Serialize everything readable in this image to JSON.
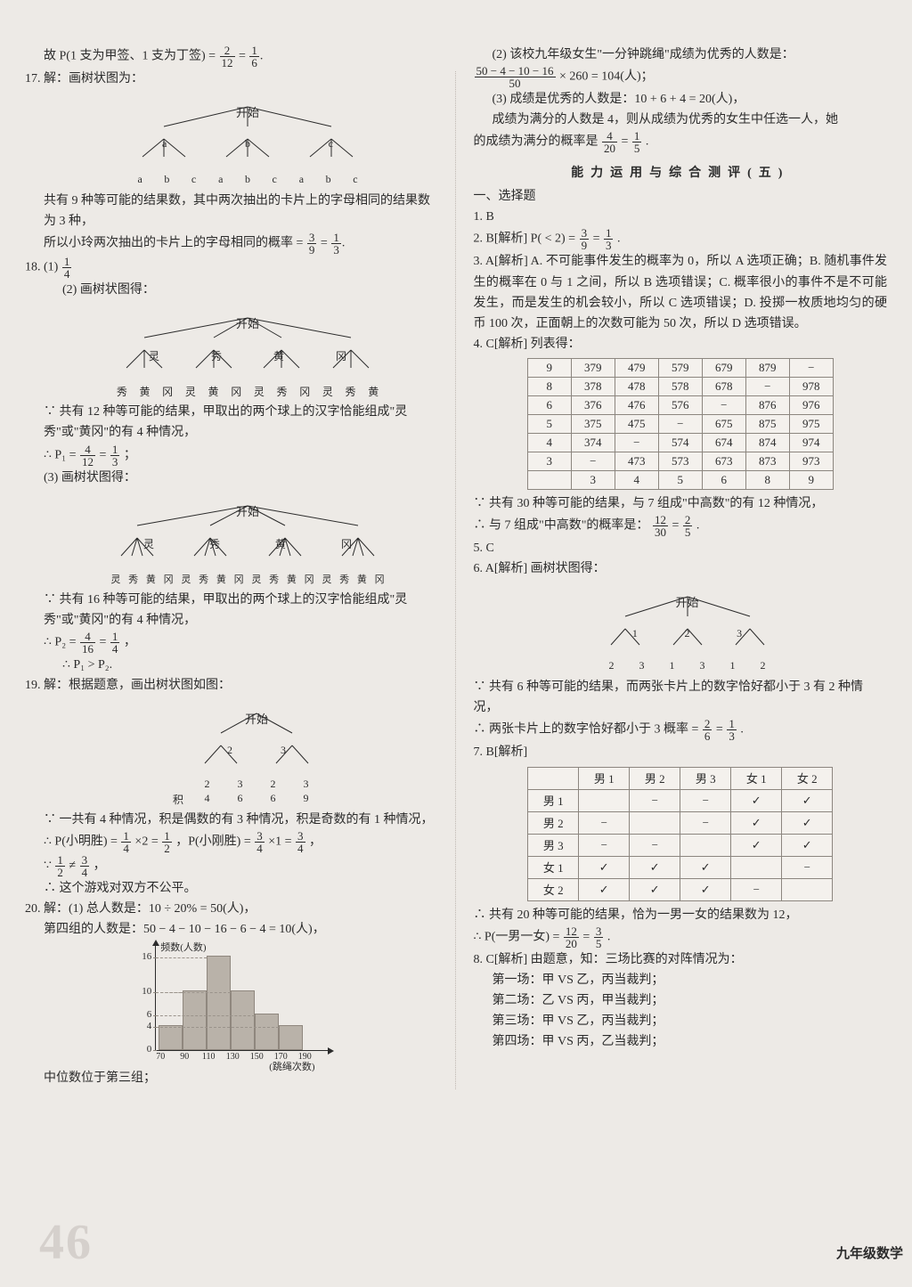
{
  "page_number": "46",
  "footer": "九年级数学",
  "left": {
    "q16_line": "故 P(1 支为甲签、1 支为丁签) = ",
    "q16_eq_fracs": [
      "2",
      "12",
      "1",
      "6"
    ],
    "q17_head": "17. 解：画树状图为：",
    "start_label": "开始",
    "tree17": {
      "mid": [
        "a",
        "b",
        "c"
      ],
      "leaves": [
        "a",
        "b",
        "c",
        "a",
        "b",
        "c",
        "a",
        "b",
        "c"
      ]
    },
    "q17_exp1": "共有 9 种等可能的结果数，其中两次抽出的卡片上的字母相同的结果数为 3 种，",
    "q17_exp2_a": "所以小玲两次抽出的卡片上的字母相同的概率 = ",
    "q17_eq_fracs": [
      "3",
      "9",
      "1",
      "3"
    ],
    "q18_1_a": "18. (1) ",
    "q18_1_frac": [
      "1",
      "4"
    ],
    "q18_2_head": "(2) 画树状图得：",
    "tree18_2": {
      "mid": [
        "灵",
        "秀",
        "黄",
        "冈"
      ],
      "leaves": [
        "秀",
        "黄",
        "冈",
        "灵",
        "黄",
        "冈",
        "灵",
        "秀",
        "冈",
        "灵",
        "秀",
        "黄"
      ]
    },
    "q18_2_exp1": "∵ 共有 12 种等可能的结果，甲取出的两个球上的汉字恰能组成\"灵秀\"或\"黄冈\"的有 4 种情况，",
    "q18_2_eq_a": "∴ P₁ = ",
    "q18_2_fracs": [
      "4",
      "12",
      "1",
      "3"
    ],
    "q18_2_eq_b": "；",
    "q18_3_head": "(3) 画树状图得：",
    "tree18_3": {
      "mid": [
        "灵",
        "秀",
        "黄",
        "冈"
      ],
      "leaves": [
        "灵",
        "秀",
        "黄",
        "冈",
        "灵",
        "秀",
        "黄",
        "冈",
        "灵",
        "秀",
        "黄",
        "冈",
        "灵",
        "秀",
        "黄",
        "冈"
      ]
    },
    "q18_3_exp1": "∵ 共有 16 种等可能的结果，甲取出的两个球上的汉字恰能组成\"灵秀\"或\"黄冈\"的有 4 种情况，",
    "q18_3_eq_a": "∴ P₂ = ",
    "q18_3_fracs": [
      "4",
      "16",
      "1",
      "4"
    ],
    "q18_3_eq_b": "，",
    "q18_3_cmp": "∴ P₁ > P₂.",
    "q19_head": "19. 解：根据题意，画出树状图如图：",
    "tree19": {
      "mid": [
        "2",
        "3"
      ],
      "leaves": [
        "2",
        "3",
        "2",
        "3"
      ],
      "prod_label": "积",
      "prods": [
        "4",
        "6",
        "6",
        "9"
      ]
    },
    "q19_exp1": "∵ 一共有 4 种情况，积是偶数的有 3 种情况，积是奇数的有 1 种情况，",
    "q19_eq1_a": "∴ P(小明胜) = ",
    "q19_eq1_f1": [
      "1",
      "4"
    ],
    "q19_eq1_mid": " ×2 = ",
    "q19_eq1_f2": [
      "1",
      "2"
    ],
    "q19_eq1_b": "，P(小刚胜) = ",
    "q19_eq1_f3": [
      "3",
      "4"
    ],
    "q19_eq1_c": " ×1 = ",
    "q19_eq1_f4": [
      "3",
      "4"
    ],
    "q19_eq1_d": "，",
    "q19_eq2_a": "∵ ",
    "q19_eq2_f1": [
      "1",
      "2"
    ],
    "q19_eq2_mid": " ≠ ",
    "q19_eq2_f2": [
      "3",
      "4"
    ],
    "q19_eq2_b": "，",
    "q19_concl": "∴ 这个游戏对双方不公平。",
    "q20_1": "20. 解：(1) 总人数是：10 ÷ 20% = 50(人)，",
    "q20_2": "第四组的人数是：50 − 4 − 10 − 16 − 6 − 4 = 10(人)，",
    "barchart": {
      "ylabel": "频数(人数)",
      "xlabel": "(跳绳次数)",
      "yticks": [
        16,
        10,
        6,
        4,
        0
      ],
      "xticks": [
        70,
        90,
        110,
        130,
        150,
        170,
        190
      ],
      "yscale": 6.5,
      "bars": [
        4,
        10,
        16,
        10,
        6,
        4
      ],
      "bar_color": "#b9b2a9"
    },
    "q20_median": "中位数位于第三组；"
  },
  "right": {
    "p1_a": "(2) 该校九年级女生\"一分钟跳绳\"成绩为优秀的人数是：",
    "p1_frac": [
      "50 − 4 − 10 − 16",
      "50"
    ],
    "p1_b": " × 260 = 104(人)；",
    "p2": "(3) 成绩是优秀的人数是：10 + 6 + 4 = 20(人)，",
    "p3": "成绩为满分的人数是 4，则从成绩为优秀的女生中任选一人，她",
    "p4_a": "的成绩为满分的概率是",
    "p4_f1": [
      "4",
      "20"
    ],
    "p4_mid": " = ",
    "p4_f2": [
      "1",
      "5"
    ],
    "p4_b": ".",
    "section_title": "能力运用与综合测评(五)",
    "sel_head": "一、选择题",
    "ans1": "1. B",
    "ans2_a": "2. B[解析] P( < 2) = ",
    "ans2_f1": [
      "3",
      "9"
    ],
    "ans2_mid": " = ",
    "ans2_f2": [
      "1",
      "3"
    ],
    "ans2_b": ".",
    "ans3": "3. A[解析] A. 不可能事件发生的概率为 0，所以 A 选项正确；B. 随机事件发生的概率在 0 与 1 之间，所以 B 选项错误；C. 概率很小的事件不是不可能发生，而是发生的机会较小，所以 C 选项错误；D. 投掷一枚质地均匀的硬币 100 次，正面朝上的次数可能为 50 次，所以 D 选项错误。",
    "ans4_head": "4. C[解析] 列表得：",
    "table4": {
      "cols": [
        "9",
        "8",
        "6",
        "5",
        "4",
        "3",
        ""
      ],
      "grid": [
        [
          "379",
          "479",
          "579",
          "679",
          "879",
          "−"
        ],
        [
          "378",
          "478",
          "578",
          "678",
          "−",
          "978"
        ],
        [
          "376",
          "476",
          "576",
          "−",
          "876",
          "976"
        ],
        [
          "375",
          "475",
          "−",
          "675",
          "875",
          "975"
        ],
        [
          "374",
          "−",
          "574",
          "674",
          "874",
          "974"
        ],
        [
          "−",
          "473",
          "573",
          "673",
          "873",
          "973"
        ],
        [
          "3",
          "4",
          "5",
          "6",
          "8",
          "9"
        ]
      ]
    },
    "after4_a": "∵ 共有 30 种等可能的结果，与 7 组成\"中高数\"的有 12 种情况，",
    "after4_b_a": "∴ 与 7 组成\"中高数\"的概率是：",
    "after4_f1": [
      "12",
      "30"
    ],
    "after4_mid": " = ",
    "after4_f2": [
      "2",
      "5"
    ],
    "after4_b_b": ".",
    "ans5": "5. C",
    "ans6_head": "6. A[解析] 画树状图得：",
    "tree6": {
      "mid": [
        "1",
        "2",
        "3"
      ],
      "leaves": [
        "2",
        "3",
        "1",
        "3",
        "1",
        "2"
      ]
    },
    "after6_a": "∵ 共有 6 种等可能的结果，而两张卡片上的数字恰好都小于 3 有 2 种情况，",
    "after6_b_a": "∴ 两张卡片上的数字恰好都小于 3 概率 = ",
    "after6_f1": [
      "2",
      "6"
    ],
    "after6_mid": " = ",
    "after6_f2": [
      "1",
      "3"
    ],
    "after6_b_b": ".",
    "ans7_head": "7. B[解析]",
    "table7": {
      "headers": [
        "",
        "男 1",
        "男 2",
        "男 3",
        "女 1",
        "女 2"
      ],
      "rows": [
        [
          "男 1",
          "",
          "−",
          "−",
          "✓",
          "✓"
        ],
        [
          "男 2",
          "−",
          "",
          "−",
          "✓",
          "✓"
        ],
        [
          "男 3",
          "−",
          "−",
          "",
          "✓",
          "✓"
        ],
        [
          "女 1",
          "✓",
          "✓",
          "✓",
          "",
          "−"
        ],
        [
          "女 2",
          "✓",
          "✓",
          "✓",
          "−",
          ""
        ]
      ]
    },
    "after7_a": "∴ 共有 20 种等可能的结果，恰为一男一女的结果数为 12，",
    "after7_b_a": "∴ P(一男一女) = ",
    "after7_f1": [
      "12",
      "20"
    ],
    "after7_mid": " = ",
    "after7_f2": [
      "3",
      "5"
    ],
    "after7_b_b": ".",
    "ans8_head": "8. C[解析] 由题意，知：三场比赛的对阵情况为：",
    "ans8_1": "第一场：甲 VS 乙，丙当裁判；",
    "ans8_2": "第二场：乙 VS 丙，甲当裁判；",
    "ans8_3": "第三场：甲 VS 乙，丙当裁判；",
    "ans8_4": "第四场：甲 VS 丙，乙当裁判；"
  }
}
